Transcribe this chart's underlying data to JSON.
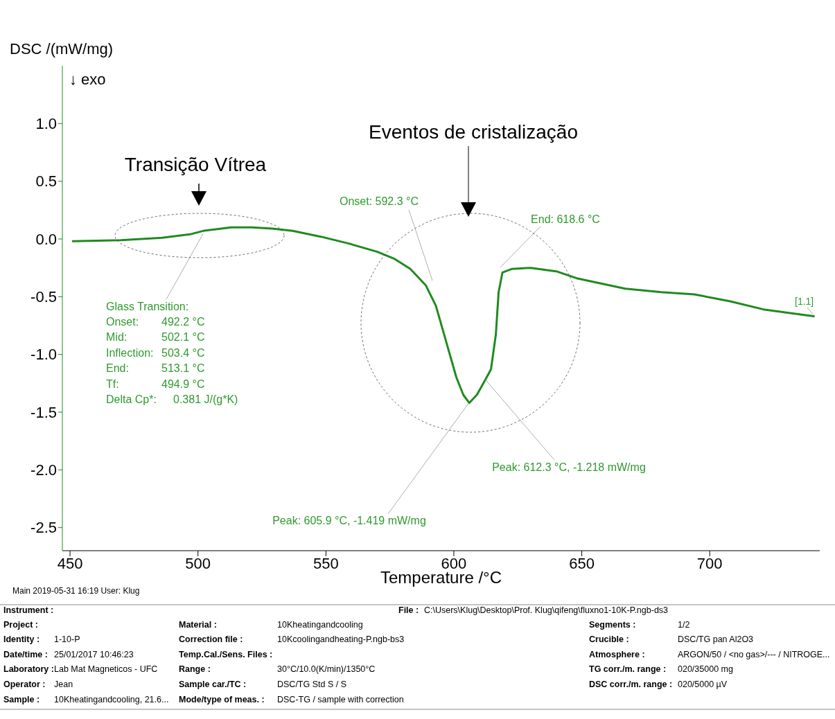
{
  "chart_data": {
    "type": "line",
    "xlabel": "Temperature /°C",
    "ylabel": "DSC /(mW/mg)",
    "x": [
      450.8,
      469.8,
      486,
      496.8,
      502,
      513,
      521,
      529,
      537,
      548,
      559,
      570,
      576.6,
      583,
      589,
      593,
      597,
      601,
      603.7,
      606,
      609,
      612.3,
      614.5,
      616.4,
      617.5,
      619,
      622.6,
      630,
      640,
      648,
      667,
      681,
      694,
      708,
      721,
      741
    ],
    "series": [
      {
        "color": "#1f8a1f",
        "values": [
          -0.02,
          -0.01,
          0.01,
          0.04,
          0.07,
          0.1,
          0.1,
          0.09,
          0.07,
          0.02,
          -0.04,
          -0.11,
          -0.17,
          -0.26,
          -0.4,
          -0.58,
          -0.89,
          -1.2,
          -1.35,
          -1.42,
          -1.35,
          -1.22,
          -1.13,
          -0.83,
          -0.46,
          -0.29,
          -0.26,
          -0.25,
          -0.28,
          -0.34,
          -0.43,
          -0.46,
          -0.48,
          -0.54,
          -0.61,
          -0.67
        ]
      }
    ],
    "xlim": [
      447,
      743
    ],
    "xticks": [
      450,
      500,
      550,
      600,
      650,
      700
    ],
    "ylim": [
      -2.7,
      1.5
    ],
    "yticks": [
      -2.5,
      {
        "value": -2,
        "label": "-2.0"
      },
      -1.5,
      {
        "value": -1,
        "label": "-1.0"
      },
      -0.5,
      {
        "value": 0,
        "label": "0.0"
      },
      0.5,
      {
        "value": 1,
        "label": "1.0"
      }
    ],
    "marker": "none",
    "line_style": "solid",
    "annotations": [
      "↓ exo",
      "Transição Vítrea",
      "Eventos de cristalização",
      "Onset: 592.3 °C",
      "End: 618.6 °C",
      {
        "text": "Peak: 605.9 °C, -1.419 mW/mg",
        "x": 605.9,
        "y": -1.419
      },
      {
        "text": "Peak: 612.3 °C, -1.218 mW/mg",
        "x": 612.3,
        "y": -1.218
      },
      {
        "text": "Glass Transition:",
        "x": 502.1,
        "y": 0.05
      },
      "Onset: 492.2 °C",
      "Mid: 502.1 °C",
      "Inflection: 503.4 °C",
      "End: 513.1 °C",
      "Tf: 494.9 °C",
      "Delta Cp*: 0.381 J/(g*K)",
      "[1.1]",
      "Main  2019-05-31 16:19  User: Klug",
      "Instrument :",
      "File :",
      "C:\\Users\\Klug\\Desktop\\Prof. Klug\\qifeng\\fluxno1-10K-P.ngb-ds3",
      "Project :",
      "Material :",
      "10Kheatingandcooling",
      "Segments :",
      "1/2",
      "Identity :",
      "1-10-P",
      "Correction file :",
      "10Kcoolingandheating-P.ngb-bs3",
      "Crucible :",
      "DSC/TG pan Al2O3",
      "Date/time :",
      "25/01/2017 10:46:23",
      "Temp.Cal./Sens. Files :",
      "Atmosphere :",
      "ARGON/50 / <no gas>/--- / NITROGE...",
      "Laboratory :",
      "Lab  Mat  Magneticos - UFC",
      "Range :",
      "30°C/10.0(K/min)/1350°C",
      "TG corr./m. range :",
      "020/35000 mg",
      "Operator :",
      "Jean",
      "Sample car./TC :",
      "DSC/TG Std S / S",
      "DSC corr./m. range :",
      "020/5000 µV",
      "Sample :",
      "10Kheatingandcooling, 21.6...",
      "Mode/type of meas. :",
      "DSC-TG / sample with correction"
    ]
  }
}
